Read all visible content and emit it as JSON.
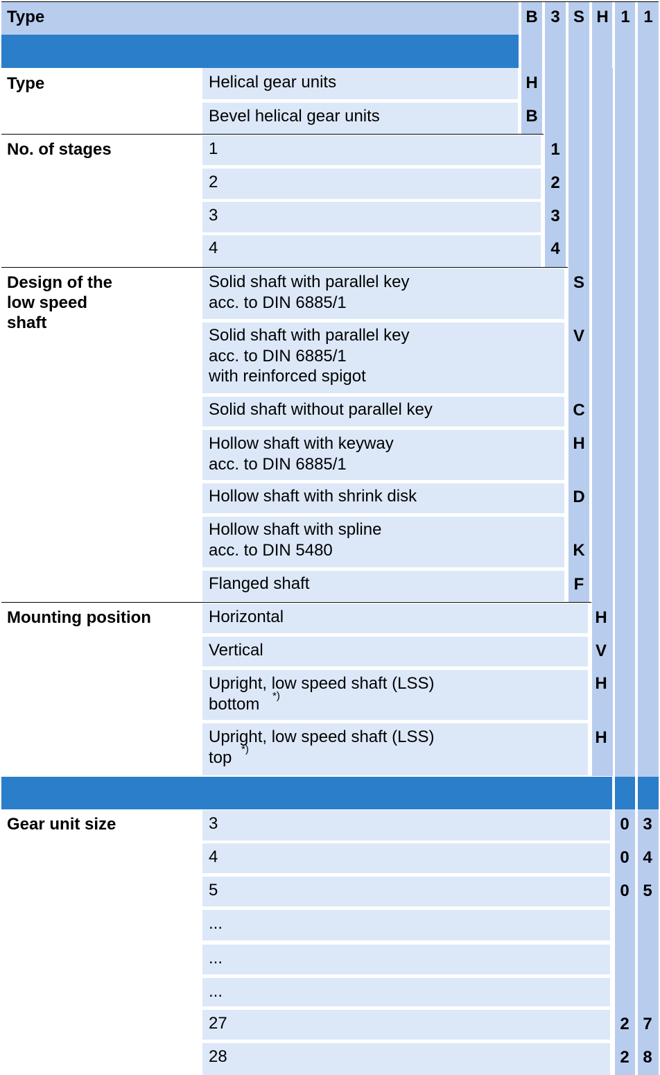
{
  "header": {
    "title": "Type",
    "codes": [
      "B",
      "3",
      "S",
      "H",
      "1",
      "1"
    ]
  },
  "sections": {
    "type": {
      "title": "Type",
      "options": [
        {
          "label": "Helical gear units",
          "code": "H"
        },
        {
          "label": "Bevel helical gear units",
          "code": "B"
        }
      ]
    },
    "stages": {
      "title": "No. of stages",
      "options": [
        {
          "label": "1",
          "code": "1"
        },
        {
          "label": "2",
          "code": "2"
        },
        {
          "label": "3",
          "code": "3"
        },
        {
          "label": "4",
          "code": "4"
        }
      ]
    },
    "shaft": {
      "title": [
        "Design of the",
        "low speed",
        "shaft"
      ],
      "options": [
        {
          "lines": [
            "Solid shaft with parallel key",
            "acc. to DIN 6885/1"
          ],
          "code": "S"
        },
        {
          "lines": [
            "Solid shaft with parallel key",
            "acc. to DIN 6885/1",
            "with reinforced spigot"
          ],
          "code": "V"
        },
        {
          "lines": [
            "Solid shaft without parallel key"
          ],
          "code": "C"
        },
        {
          "lines": [
            "Hollow shaft with keyway",
            "acc. to DIN 6885/1"
          ],
          "code": "H"
        },
        {
          "lines": [
            "Hollow shaft with shrink disk"
          ],
          "code": "D"
        },
        {
          "lines": [
            "Hollow shaft with spline",
            "acc. to DIN 5480"
          ],
          "code": "K"
        },
        {
          "lines": [
            "Flanged shaft"
          ],
          "code": "F"
        }
      ]
    },
    "mounting": {
      "title": "Mounting position",
      "options": [
        {
          "lines": [
            "Horizontal"
          ],
          "code": "H"
        },
        {
          "lines": [
            "Vertical"
          ],
          "code": "V"
        },
        {
          "lines": [
            "Upright, low speed shaft (LSS)",
            "bottom"
          ],
          "code": "H",
          "footnote": "*)"
        },
        {
          "lines": [
            "Upright, low speed shaft (LSS)",
            "top"
          ],
          "code": "H",
          "footnote": "*)"
        }
      ]
    },
    "size": {
      "title": "Gear unit size",
      "options": [
        {
          "label": "3",
          "d1": "0",
          "d2": "3"
        },
        {
          "label": "4",
          "d1": "0",
          "d2": "4"
        },
        {
          "label": "5",
          "d1": "0",
          "d2": "5"
        },
        {
          "label": "...",
          "d1": "",
          "d2": ""
        },
        {
          "label": "...",
          "d1": "",
          "d2": ""
        },
        {
          "label": "...",
          "d1": "",
          "d2": ""
        },
        {
          "label": "27",
          "d1": "2",
          "d2": "7"
        },
        {
          "label": "28",
          "d1": "2",
          "d2": "8"
        }
      ]
    }
  }
}
